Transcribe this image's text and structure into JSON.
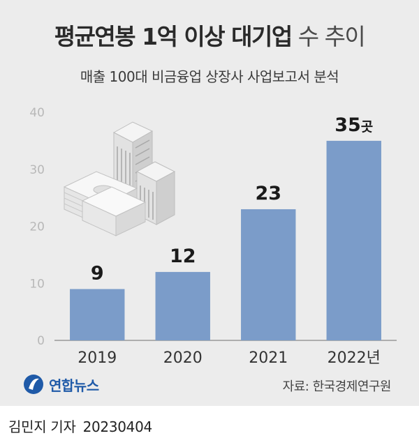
{
  "header": {
    "title_bold": "평균연봉 1억 이상 대기업",
    "title_light": "수 추이",
    "subtitle": "매출 100대 비금융업 상장사 사업보고서 분석"
  },
  "chart_data": {
    "type": "bar",
    "categories": [
      "2019",
      "2020",
      "2021",
      "2022년"
    ],
    "values": [
      9,
      12,
      23,
      35
    ],
    "value_labels": [
      "9",
      "12",
      "23",
      "35"
    ],
    "unit_suffix": "곳",
    "title": "평균연봉 1억 이상 대기업 수 추이",
    "ylim": [
      0,
      40
    ],
    "yticks": [
      0,
      10,
      20,
      30,
      40
    ],
    "bar_color": "#7b9cc9",
    "grid": false
  },
  "footer": {
    "logo_text": "연합뉴스",
    "source": "자료: 한국경제연구원",
    "reporter": "김민지 기자",
    "date": "20230404"
  },
  "colors": {
    "background": "#ececec",
    "bar": "#7b9cc9",
    "brand": "#1f5aa8"
  }
}
